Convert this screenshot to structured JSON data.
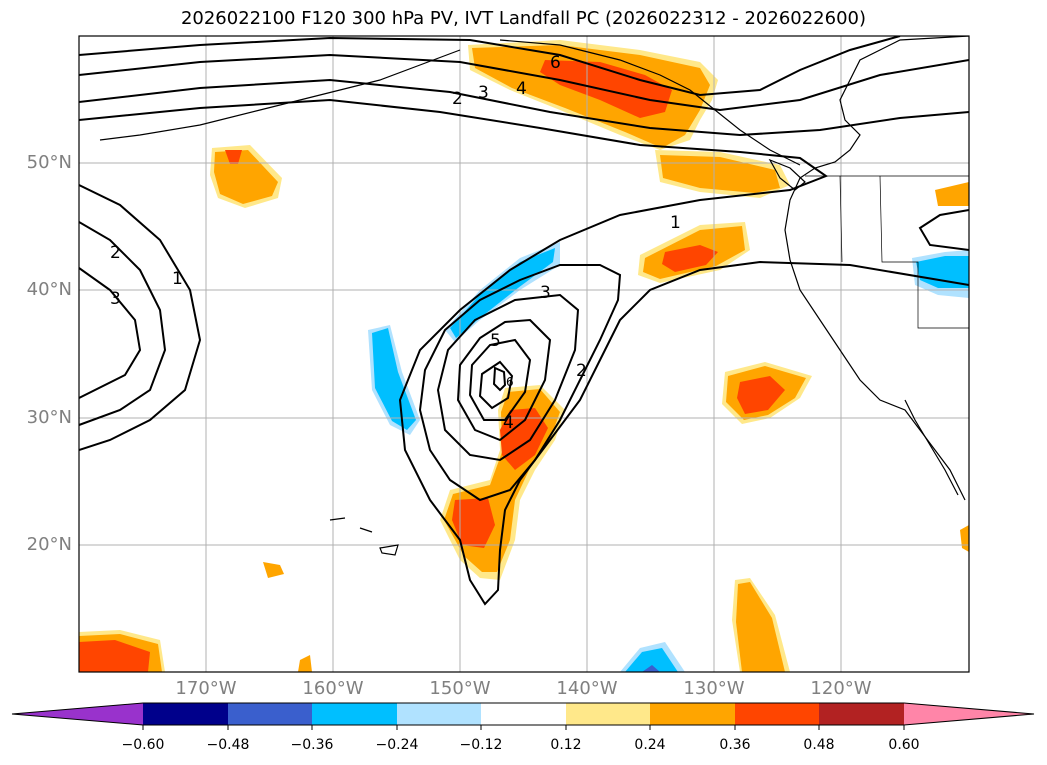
{
  "title": "2026022100 F120 300 hPa PV, IVT Landfall PC (2026022312 - 2026022600)",
  "longitude_labels": [
    {
      "lon": -170,
      "text": "170°W"
    },
    {
      "lon": -160,
      "text": "160°W"
    },
    {
      "lon": -150,
      "text": "150°W"
    },
    {
      "lon": -140,
      "text": "140°W"
    },
    {
      "lon": -130,
      "text": "130°W"
    },
    {
      "lon": -120,
      "text": "120°W"
    }
  ],
  "latitude_labels": [
    {
      "lat": 50,
      "text": "50°N"
    },
    {
      "lat": 40,
      "text": "40°N"
    },
    {
      "lat": 30,
      "text": "30°N"
    },
    {
      "lat": 20,
      "text": "20°N"
    }
  ],
  "contour_labels": [
    "1",
    "2",
    "3",
    "4",
    "5",
    "6"
  ],
  "colorbar": {
    "ticks": [
      "−0.60",
      "−0.48",
      "−0.36",
      "−0.24",
      "−0.12",
      "0.12",
      "0.24",
      "0.36",
      "0.48",
      "0.60"
    ],
    "colors": [
      "#9932cc",
      "#00008b",
      "#3a5fcd",
      "#00bfff",
      "#b0e2ff",
      "#ffffff",
      "#ffe88a",
      "#ffa500",
      "#ff4500",
      "#b22222",
      "#ff85a8"
    ]
  },
  "colors": {
    "pos1": "#ffe88a",
    "pos2": "#ffa500",
    "pos3": "#ff4500",
    "neg1": "#b0e2ff",
    "neg2": "#00bfff",
    "neg3": "#3a5fcd"
  }
}
